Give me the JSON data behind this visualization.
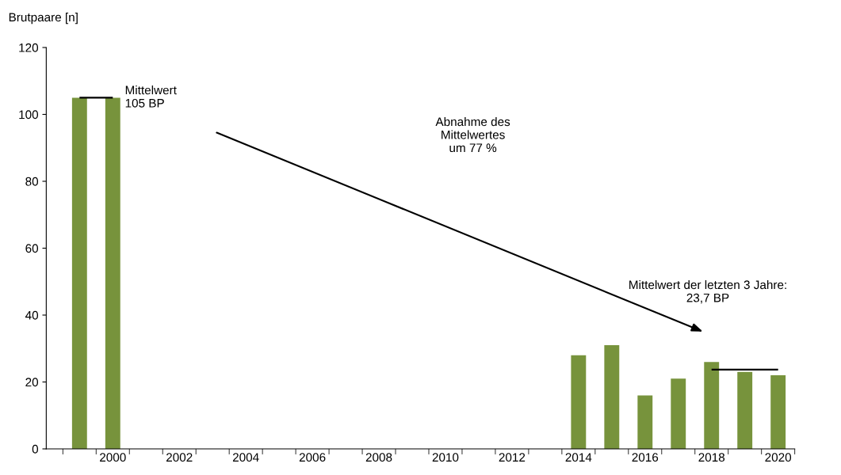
{
  "chart_data": {
    "type": "bar",
    "ylabel": "Brutpaare [n]",
    "categories": [
      null,
      "2000",
      null,
      "2002",
      null,
      "2004",
      null,
      "2006",
      null,
      "2008",
      null,
      "2010",
      null,
      "2012",
      null,
      "2014",
      null,
      "2016",
      null,
      "2018",
      null,
      "2020"
    ],
    "series": [
      {
        "color": "#77933c",
        "values": [
          105,
          105,
          null,
          null,
          null,
          null,
          null,
          null,
          null,
          null,
          null,
          null,
          null,
          null,
          null,
          28,
          31,
          16,
          21,
          26,
          23,
          22
        ]
      },
      {
        "type": "line",
        "color": "#000000",
        "values": [
          105,
          105,
          null,
          null,
          null,
          null,
          null,
          null,
          null,
          null,
          null,
          null,
          null,
          null,
          null,
          null,
          null,
          null,
          null,
          null,
          null,
          null
        ]
      },
      {
        "type": "line",
        "color": "#000000",
        "values": [
          null,
          null,
          null,
          null,
          null,
          null,
          null,
          null,
          null,
          null,
          null,
          null,
          null,
          null,
          null,
          null,
          null,
          null,
          null,
          23.7,
          23.7,
          23.7
        ]
      }
    ],
    "ylim": [
      0,
      120
    ],
    "yticks": [
      0,
      20,
      40,
      60,
      80,
      100,
      120
    ],
    "grid": false,
    "legend": false,
    "annotations": [
      {
        "text": "Mittelwert\n105 BP",
        "x": "2000",
        "y": 105
      },
      "Abnahme des\nMittelwertes\num 77 %",
      "Mittelwert der letzten 3 Jahre:\n23,7 BP"
    ]
  }
}
